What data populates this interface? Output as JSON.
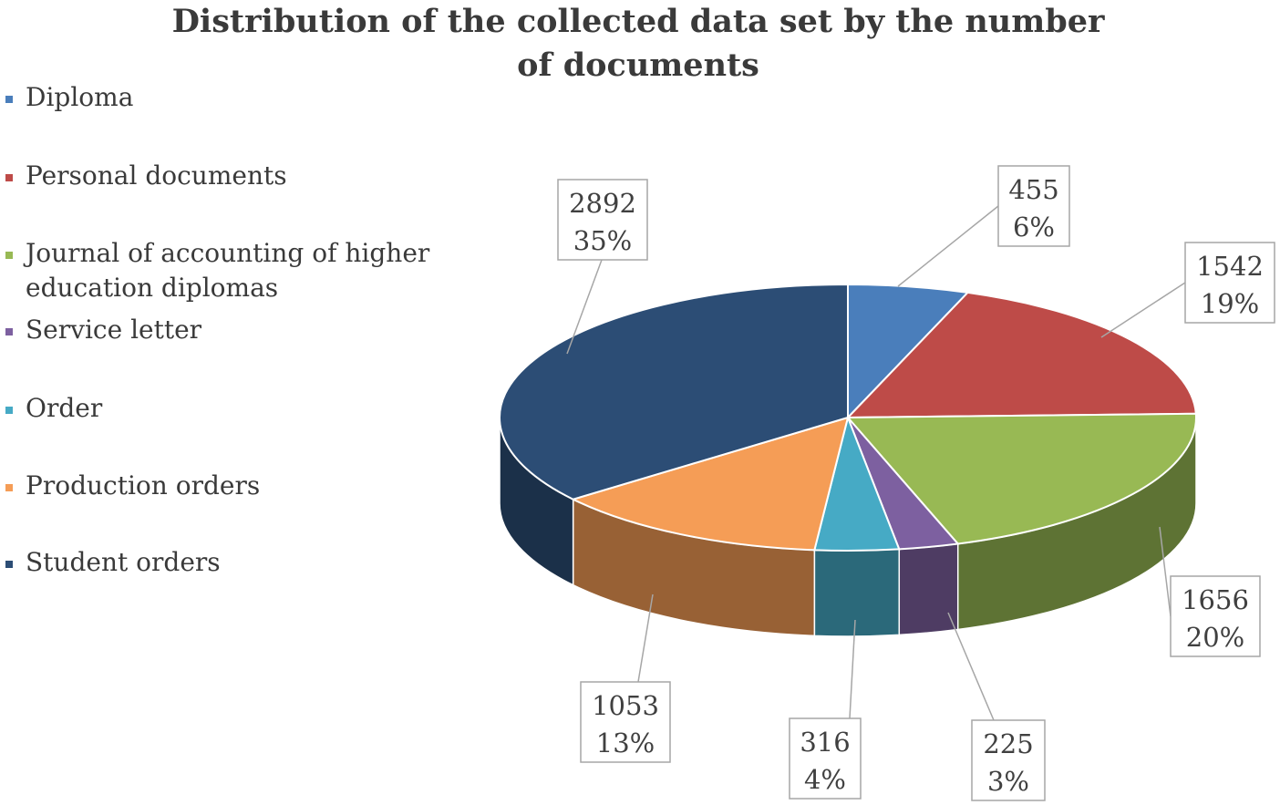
{
  "chart_data": {
    "type": "pie",
    "title": "Distribution of the collected data set by the number\nof documents",
    "legend_position": "left",
    "series": [
      {
        "name": "Diploma",
        "value": 455,
        "percent": "6%",
        "color": "#4a7ebb"
      },
      {
        "name": "Personal documents",
        "value": 1542,
        "percent": "19%",
        "color": "#be4b48"
      },
      {
        "name": "Journal of accounting of higher education diplomas",
        "value": 1656,
        "percent": "20%",
        "color": "#98b954"
      },
      {
        "name": "Service letter",
        "value": 225,
        "percent": "3%",
        "color": "#7d60a0"
      },
      {
        "name": "Order",
        "value": 316,
        "percent": "4%",
        "color": "#46aac5"
      },
      {
        "name": "Production orders",
        "value": 1053,
        "percent": "13%",
        "color": "#f59d56"
      },
      {
        "name": "Student orders",
        "value": 2892,
        "percent": "35%",
        "color": "#2c4d75"
      }
    ]
  }
}
